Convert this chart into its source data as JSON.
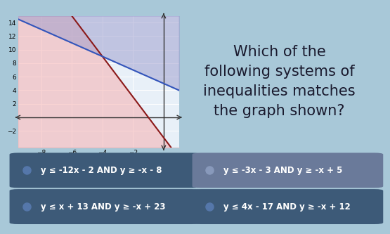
{
  "title_lines": [
    "Which of the",
    "following systems of",
    "inequalities matches",
    "the graph shown?"
  ],
  "title_fontsize": 15,
  "bg_color_top": "#a8c8d8",
  "bg_color_bottom": "#3a5a7a",
  "graph_bg": "#e8f0f8",
  "graph_xlim": [
    -9.5,
    1.0
  ],
  "graph_ylim": [
    -4.5,
    15.0
  ],
  "xticks": [
    -8,
    -6,
    -4,
    -2
  ],
  "yticks": [
    -2,
    2,
    4,
    6,
    8,
    10,
    12,
    14
  ],
  "line1_slope": -3,
  "line1_intercept": -3,
  "line1_color": "#8b1a1a",
  "line2_slope": -1,
  "line2_intercept": 5,
  "line2_color": "#3355bb",
  "shade1_color": "#f5b0b0",
  "shade1_alpha": 0.55,
  "shade2_color": "#9999cc",
  "shade2_alpha": 0.5,
  "options": [
    {
      "text": "y ≤ -12x - 2 AND y ≥ -x - 8",
      "highlight": false,
      "col": 0,
      "row": 0
    },
    {
      "text": "y ≤ -3x - 3 AND y ≥ -x + 5",
      "highlight": true,
      "col": 1,
      "row": 0
    },
    {
      "text": "y ≤ x + 13 AND y ≥ -x + 23",
      "highlight": false,
      "col": 0,
      "row": 1
    },
    {
      "text": "y ≤ 4x - 17 AND y ≥ -x + 12",
      "highlight": false,
      "col": 1,
      "row": 1
    }
  ],
  "option_bg_normal": "#3d5a78",
  "option_bg_highlight": "#6a7a9a",
  "option_text_color": "#ffffff",
  "option_fontsize": 8.5,
  "dot_color_normal": "#5577aa",
  "dot_color_highlight": "#8899bb"
}
